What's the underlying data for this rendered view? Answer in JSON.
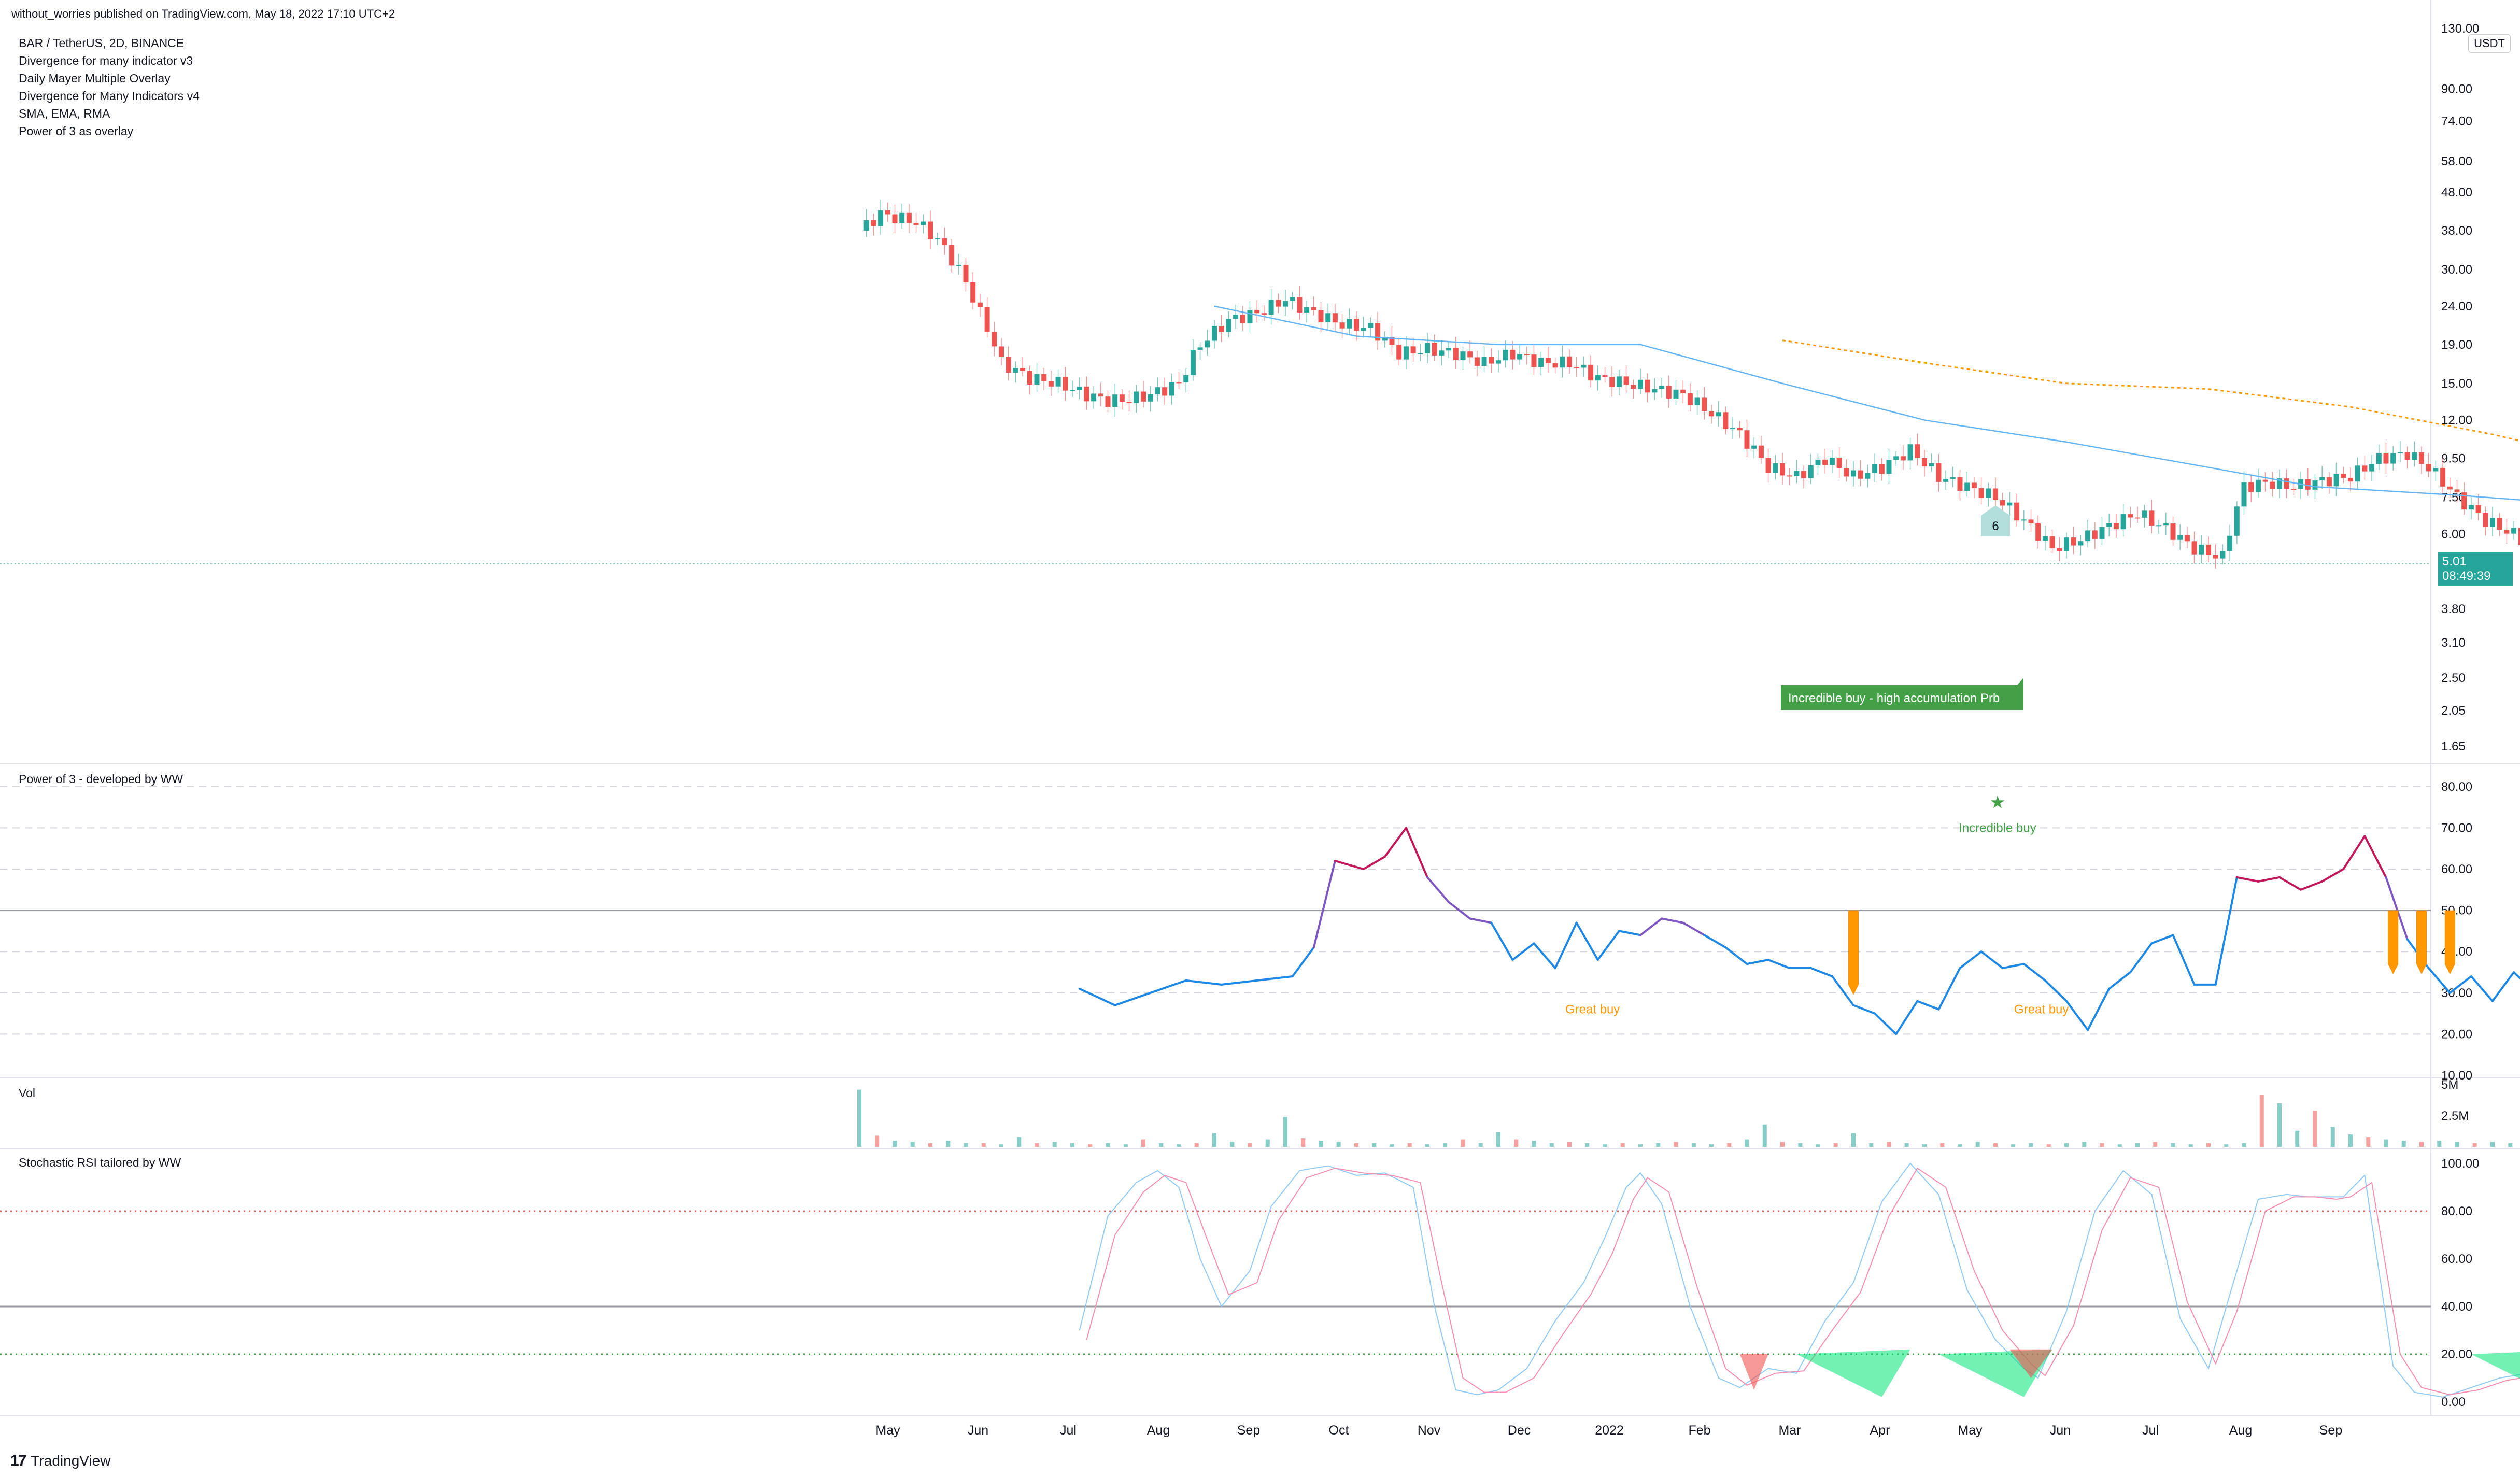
{
  "header": {
    "published": "without_worries published on TradingView.com, May 18, 2022 17:10 UTC+2"
  },
  "legend": [
    "BAR / TetherUS, 2D, BINANCE",
    "Divergence for many indicator v3",
    "Daily Mayer Multiple Overlay",
    "Divergence for Many Indicators v4",
    "SMA, EMA, RMA",
    "Power of 3 as overlay"
  ],
  "currency_label": "USDT",
  "last_price": {
    "value": "5.01",
    "countdown": "08:49:39"
  },
  "footer": {
    "brand": "TradingView",
    "logo": "tradingview-logo-icon"
  },
  "colors": {
    "up": "#26a69a",
    "down": "#ef5350",
    "ma": "#64b5f6",
    "mayer": "#ff9800",
    "label_green": "#43a047",
    "orange": "#ff9800"
  },
  "chart_data": [
    {
      "type": "candlestick",
      "title": "BAR / TetherUS, 2D, BINANCE",
      "y_scale": "log",
      "ylim": [
        1.5,
        130
      ],
      "y_ticks": [
        "130.00",
        "90.00",
        "74.00",
        "58.00",
        "48.00",
        "38.00",
        "30.00",
        "24.00",
        "19.00",
        "15.00",
        "12.00",
        "9.50",
        "7.50",
        "6.00",
        "4.80",
        "3.80",
        "3.10",
        "2.50",
        "2.05",
        "1.65"
      ],
      "x_ticks": [
        "May",
        "Jun",
        "Jul",
        "Aug",
        "Sep",
        "Oct",
        "Nov",
        "Dec",
        "2022",
        "Feb",
        "Mar",
        "Apr",
        "May",
        "Jun",
        "Jul",
        "Aug",
        "Sep"
      ],
      "close_path": [
        [
          0,
          38
        ],
        [
          3,
          42
        ],
        [
          8,
          40
        ],
        [
          11,
          36
        ],
        [
          14,
          30
        ],
        [
          17,
          23
        ],
        [
          20,
          17
        ],
        [
          24,
          15.5
        ],
        [
          28,
          15
        ],
        [
          32,
          14
        ],
        [
          35,
          13.5
        ],
        [
          38,
          13.6
        ],
        [
          41,
          14
        ],
        [
          45,
          15
        ],
        [
          48,
          19
        ],
        [
          52,
          22
        ],
        [
          56,
          23
        ],
        [
          60,
          25
        ],
        [
          64,
          23
        ],
        [
          68,
          21.5
        ],
        [
          72,
          21
        ],
        [
          76,
          18
        ],
        [
          80,
          18.5
        ],
        [
          84,
          18
        ],
        [
          88,
          17
        ],
        [
          92,
          18
        ],
        [
          96,
          17
        ],
        [
          100,
          17
        ],
        [
          104,
          15.5
        ],
        [
          108,
          15
        ],
        [
          112,
          14.5
        ],
        [
          116,
          14
        ],
        [
          120,
          12.5
        ],
        [
          124,
          11
        ],
        [
          128,
          9
        ],
        [
          132,
          8.5
        ],
        [
          136,
          9.5
        ],
        [
          140,
          8.5
        ],
        [
          144,
          9
        ],
        [
          148,
          10
        ],
        [
          152,
          8.5
        ],
        [
          156,
          8
        ],
        [
          160,
          7.5
        ],
        [
          164,
          6.5
        ],
        [
          168,
          5.5
        ],
        [
          172,
          5.8
        ],
        [
          176,
          6.3
        ],
        [
          180,
          6.8
        ],
        [
          184,
          6.2
        ],
        [
          188,
          5.5
        ],
        [
          192,
          5.2
        ],
        [
          195,
          8
        ],
        [
          198,
          8.2
        ],
        [
          202,
          8
        ],
        [
          206,
          8.3
        ],
        [
          210,
          8.5
        ],
        [
          214,
          9.5
        ],
        [
          218,
          9.8
        ],
        [
          221,
          9
        ],
        [
          225,
          7.5
        ],
        [
          229,
          6.5
        ],
        [
          233,
          6
        ],
        [
          237,
          5.2
        ],
        [
          240,
          4.8
        ],
        [
          242,
          3.5
        ],
        [
          244,
          2.6
        ],
        [
          247,
          3.1
        ],
        [
          250,
          5.01
        ]
      ],
      "ma_line": [
        [
          50,
          24
        ],
        [
          70,
          20
        ],
        [
          90,
          19
        ],
        [
          110,
          19
        ],
        [
          130,
          15
        ],
        [
          150,
          12
        ],
        [
          170,
          10.5
        ],
        [
          190,
          9
        ],
        [
          205,
          8
        ],
        [
          225,
          7.6
        ],
        [
          250,
          7
        ]
      ],
      "mayer_line": [
        [
          130,
          19.5
        ],
        [
          150,
          17
        ],
        [
          170,
          15
        ],
        [
          190,
          14.5
        ],
        [
          210,
          13
        ],
        [
          230,
          11
        ],
        [
          250,
          9
        ]
      ],
      "annotations": [
        {
          "text": "6",
          "near": "Feb 2022 candle"
        },
        {
          "text": "Incredible buy - high accumulation Prb",
          "near": "May 2022 low"
        }
      ]
    },
    {
      "type": "line",
      "title": "Power of 3 - developed by WW",
      "ylim": [
        10,
        85
      ],
      "y_ticks": [
        "80.00",
        "70.00",
        "60.00",
        "50.00",
        "40.00",
        "30.00",
        "20.00",
        "10.00"
      ],
      "midline": 50,
      "series_points": [
        [
          17,
          31
        ],
        [
          22,
          27
        ],
        [
          27,
          30
        ],
        [
          32,
          33
        ],
        [
          37,
          32
        ],
        [
          42,
          33
        ],
        [
          47,
          34
        ],
        [
          50,
          41
        ],
        [
          53,
          62
        ],
        [
          57,
          60
        ],
        [
          60,
          63
        ],
        [
          63,
          70
        ],
        [
          66,
          58
        ],
        [
          69,
          52
        ],
        [
          72,
          48
        ],
        [
          75,
          47
        ],
        [
          78,
          38
        ],
        [
          81,
          42
        ],
        [
          84,
          36
        ],
        [
          87,
          47
        ],
        [
          90,
          38
        ],
        [
          93,
          45
        ],
        [
          96,
          44
        ],
        [
          99,
          48
        ],
        [
          102,
          47
        ],
        [
          105,
          44
        ],
        [
          108,
          41
        ],
        [
          111,
          37
        ],
        [
          114,
          38
        ],
        [
          117,
          36
        ],
        [
          120,
          36
        ],
        [
          123,
          34
        ],
        [
          126,
          27
        ],
        [
          129,
          25
        ],
        [
          132,
          20
        ],
        [
          135,
          28
        ],
        [
          138,
          26
        ],
        [
          141,
          36
        ],
        [
          144,
          40
        ],
        [
          147,
          36
        ],
        [
          150,
          37
        ],
        [
          153,
          33
        ],
        [
          156,
          28
        ],
        [
          159,
          21
        ],
        [
          162,
          31
        ],
        [
          165,
          35
        ],
        [
          168,
          42
        ],
        [
          171,
          44
        ],
        [
          174,
          32
        ],
        [
          177,
          32
        ],
        [
          180,
          58
        ],
        [
          183,
          57
        ],
        [
          186,
          58
        ],
        [
          189,
          55
        ],
        [
          192,
          57
        ],
        [
          195,
          60
        ],
        [
          198,
          68
        ],
        [
          201,
          58
        ],
        [
          204,
          43
        ],
        [
          207,
          36
        ],
        [
          210,
          30
        ],
        [
          213,
          34
        ],
        [
          216,
          28
        ],
        [
          219,
          35
        ],
        [
          222,
          30
        ],
        [
          225,
          21
        ],
        [
          228,
          28
        ],
        [
          231,
          45
        ]
      ],
      "annotations": [
        {
          "text": "Great buy",
          "near": "Dec"
        },
        {
          "text": "Great buy",
          "near": "May"
        },
        {
          "text": "Incredible buy",
          "near": "May"
        }
      ]
    },
    {
      "type": "bar",
      "title": "Vol",
      "y_ticks": [
        "5M",
        "2.5M"
      ],
      "description_values_M": [
        4.6,
        0.9,
        0.5,
        0.4,
        0.3,
        0.5,
        0.3,
        0.3,
        0.2,
        0.8,
        0.3,
        0.4,
        0.3,
        0.2,
        0.3,
        0.2,
        0.6,
        0.3,
        0.2,
        0.3,
        1.1,
        0.4,
        0.3,
        0.6,
        2.4,
        0.7,
        0.5,
        0.4,
        0.3,
        0.3,
        0.2,
        0.3,
        0.2,
        0.3,
        0.6,
        0.3,
        1.2,
        0.6,
        0.5,
        0.3,
        0.4,
        0.3,
        0.2,
        0.3,
        0.2,
        0.3,
        0.4,
        0.3,
        0.2,
        0.3,
        0.6,
        1.8,
        0.4,
        0.3,
        0.2,
        0.3,
        1.1,
        0.3,
        0.4,
        0.3,
        0.2,
        0.3,
        0.2,
        0.4,
        0.3,
        0.2,
        0.3,
        0.2,
        0.3,
        0.4,
        0.3,
        0.2,
        0.3,
        0.4,
        0.3,
        0.2,
        0.3,
        0.2,
        0.3,
        4.2,
        3.5,
        1.3,
        2.9,
        1.6,
        1.0,
        0.8,
        0.6,
        0.5,
        0.4,
        0.5,
        0.4,
        0.3,
        0.4,
        0.3,
        0.2,
        0.3,
        0.4,
        0.3,
        0.5,
        0.4,
        2.0
      ]
    },
    {
      "type": "line",
      "title": "Stochastic RSI tailored by WW",
      "ylim": [
        -5,
        105
      ],
      "y_ticks": [
        "100.00",
        "80.00",
        "60.00",
        "40.00",
        "20.00",
        "0.00"
      ],
      "overbought": 80,
      "oversold": 20,
      "midline": 40,
      "k_points": [
        [
          17,
          30
        ],
        [
          21,
          78
        ],
        [
          25,
          92
        ],
        [
          28,
          97
        ],
        [
          31,
          90
        ],
        [
          34,
          60
        ],
        [
          37,
          40
        ],
        [
          41,
          55
        ],
        [
          44,
          82
        ],
        [
          48,
          97
        ],
        [
          52,
          99
        ],
        [
          56,
          95
        ],
        [
          60,
          96
        ],
        [
          64,
          90
        ],
        [
          67,
          40
        ],
        [
          70,
          5
        ],
        [
          73,
          3
        ],
        [
          76,
          5
        ],
        [
          80,
          14
        ],
        [
          84,
          34
        ],
        [
          88,
          50
        ],
        [
          91,
          69
        ],
        [
          94,
          90
        ],
        [
          96,
          96
        ],
        [
          99,
          83
        ],
        [
          103,
          40
        ],
        [
          107,
          10
        ],
        [
          110,
          6
        ],
        [
          114,
          14
        ],
        [
          118,
          12
        ],
        [
          122,
          34
        ],
        [
          126,
          50
        ],
        [
          130,
          84
        ],
        [
          134,
          100
        ],
        [
          138,
          87
        ],
        [
          142,
          47
        ],
        [
          146,
          26
        ],
        [
          150,
          14
        ],
        [
          152,
          10
        ],
        [
          156,
          38
        ],
        [
          160,
          80
        ],
        [
          164,
          97
        ],
        [
          168,
          87
        ],
        [
          172,
          35
        ],
        [
          176,
          14
        ],
        [
          179,
          45
        ],
        [
          183,
          85
        ],
        [
          187,
          87
        ],
        [
          190,
          86
        ],
        [
          193,
          86
        ],
        [
          195,
          86
        ],
        [
          198,
          95
        ],
        [
          202,
          15
        ],
        [
          205,
          4
        ],
        [
          209,
          2
        ],
        [
          213,
          6
        ],
        [
          217,
          10
        ],
        [
          221,
          12
        ],
        [
          225,
          16
        ],
        [
          229,
          47
        ]
      ],
      "d_points": [
        [
          18,
          26
        ],
        [
          22,
          70
        ],
        [
          26,
          88
        ],
        [
          29,
          95
        ],
        [
          32,
          92
        ],
        [
          35,
          68
        ],
        [
          38,
          45
        ],
        [
          42,
          50
        ],
        [
          45,
          76
        ],
        [
          49,
          94
        ],
        [
          53,
          98
        ],
        [
          57,
          96
        ],
        [
          61,
          95
        ],
        [
          65,
          92
        ],
        [
          68,
          50
        ],
        [
          71,
          10
        ],
        [
          74,
          4
        ],
        [
          77,
          4
        ],
        [
          81,
          10
        ],
        [
          85,
          28
        ],
        [
          89,
          45
        ],
        [
          92,
          62
        ],
        [
          95,
          85
        ],
        [
          97,
          94
        ],
        [
          100,
          88
        ],
        [
          104,
          48
        ],
        [
          108,
          14
        ],
        [
          111,
          7
        ],
        [
          115,
          12
        ],
        [
          119,
          13
        ],
        [
          123,
          30
        ],
        [
          127,
          46
        ],
        [
          131,
          78
        ],
        [
          135,
          98
        ],
        [
          139,
          90
        ],
        [
          143,
          55
        ],
        [
          147,
          30
        ],
        [
          151,
          16
        ],
        [
          153,
          11
        ],
        [
          157,
          32
        ],
        [
          161,
          72
        ],
        [
          165,
          94
        ],
        [
          169,
          90
        ],
        [
          173,
          42
        ],
        [
          177,
          16
        ],
        [
          180,
          38
        ],
        [
          184,
          80
        ],
        [
          188,
          86
        ],
        [
          191,
          86
        ],
        [
          194,
          85
        ],
        [
          196,
          86
        ],
        [
          199,
          92
        ],
        [
          203,
          20
        ],
        [
          206,
          6
        ],
        [
          210,
          3
        ],
        [
          214,
          5
        ],
        [
          218,
          9
        ],
        [
          222,
          11
        ],
        [
          226,
          14
        ],
        [
          230,
          40
        ]
      ]
    }
  ]
}
